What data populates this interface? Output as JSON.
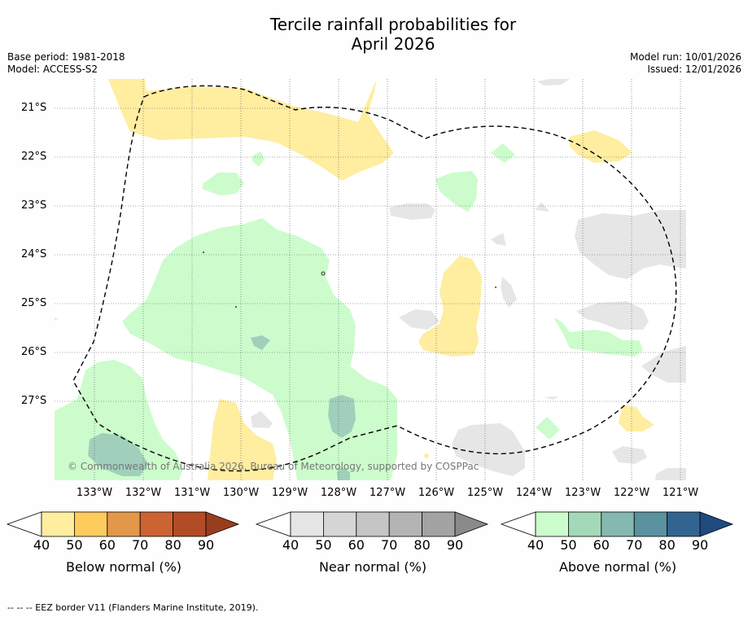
{
  "title": {
    "line1": "Tercile rainfall probabilities for",
    "line2": "April 2026"
  },
  "meta_left": {
    "base_period": "Base period: 1981-2018",
    "model": "Model: ACCESS-S2"
  },
  "meta_right": {
    "model_run": "Model run: 10/01/2026",
    "issued": "Issued: 12/01/2026"
  },
  "map": {
    "lat_labels": [
      "21°S",
      "22°S",
      "23°S",
      "24°S",
      "25°S",
      "26°S",
      "27°S"
    ],
    "lon_labels": [
      "133°W",
      "132°W",
      "131°W",
      "130°W",
      "129°W",
      "128°W",
      "127°W",
      "126°W",
      "125°W",
      "124°W",
      "123°W",
      "122°W",
      "121°W"
    ],
    "copyright": "© Commonwealth of Australia 2026, Bureau of Meteorology, supported by COSPPac"
  },
  "colorbars": [
    {
      "title": "Below normal (%)",
      "ticks": [
        "40",
        "50",
        "60",
        "70",
        "80",
        "90"
      ],
      "colors": [
        "#ffeda0",
        "#fecc5c",
        "#e3974a",
        "#cc6332",
        "#b34b27",
        "#993d1f"
      ]
    },
    {
      "title": "Near normal (%)",
      "ticks": [
        "40",
        "50",
        "60",
        "70",
        "80",
        "90"
      ],
      "colors": [
        "#e6e6e6",
        "#d6d6d6",
        "#c5c5c5",
        "#b4b4b4",
        "#a3a3a3",
        "#8a8a8a"
      ]
    },
    {
      "title": "Above normal (%)",
      "ticks": [
        "40",
        "50",
        "60",
        "70",
        "80",
        "90"
      ],
      "colors": [
        "#ccfccc",
        "#a3d9b8",
        "#85b8b0",
        "#5a92a0",
        "#31658f",
        "#1f4a80"
      ]
    }
  ],
  "footnote": "-- -- -- EEZ border V11 (Flanders Marine Institute, 2019).",
  "colors": {
    "below": "#ffeda0",
    "near": "#e6e6e6",
    "above": "#ccfccc",
    "above2": "#a0d0bc"
  }
}
